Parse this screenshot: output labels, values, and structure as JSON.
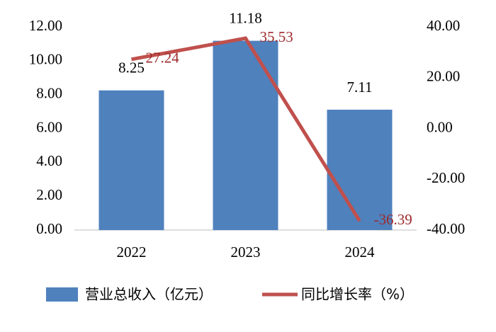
{
  "chart_data": {
    "type": "bar",
    "categories": [
      "2022",
      "2023",
      "2024"
    ],
    "series": [
      {
        "name": "营业总收入（亿元）",
        "type": "bar",
        "color": "#4f81bd",
        "values": [
          8.25,
          11.18,
          7.11
        ]
      },
      {
        "name": "同比增长率（%）",
        "type": "line",
        "axis": "y2",
        "color": "#c0504d",
        "values": [
          27.24,
          35.53,
          -36.39
        ]
      }
    ],
    "ylim": [
      0,
      12
    ],
    "yticks": [
      {
        "value": 0,
        "label": "0.00"
      },
      {
        "value": 2,
        "label": "2.00"
      },
      {
        "value": 4,
        "label": "4.00"
      },
      {
        "value": 6,
        "label": "6.00"
      },
      {
        "value": 8,
        "label": "8.00"
      },
      {
        "value": 10,
        "label": "10.00"
      },
      {
        "value": 12,
        "label": "12.00"
      }
    ],
    "y2lim": [
      -40,
      40
    ],
    "y2ticks": [
      {
        "value": -40,
        "label": "-40.00"
      },
      {
        "value": -20,
        "label": "-20.00"
      },
      {
        "value": 0,
        "label": "0.00"
      },
      {
        "value": 20,
        "label": "20.00"
      },
      {
        "value": 40,
        "label": "40.00"
      }
    ],
    "legend": "bottom"
  }
}
